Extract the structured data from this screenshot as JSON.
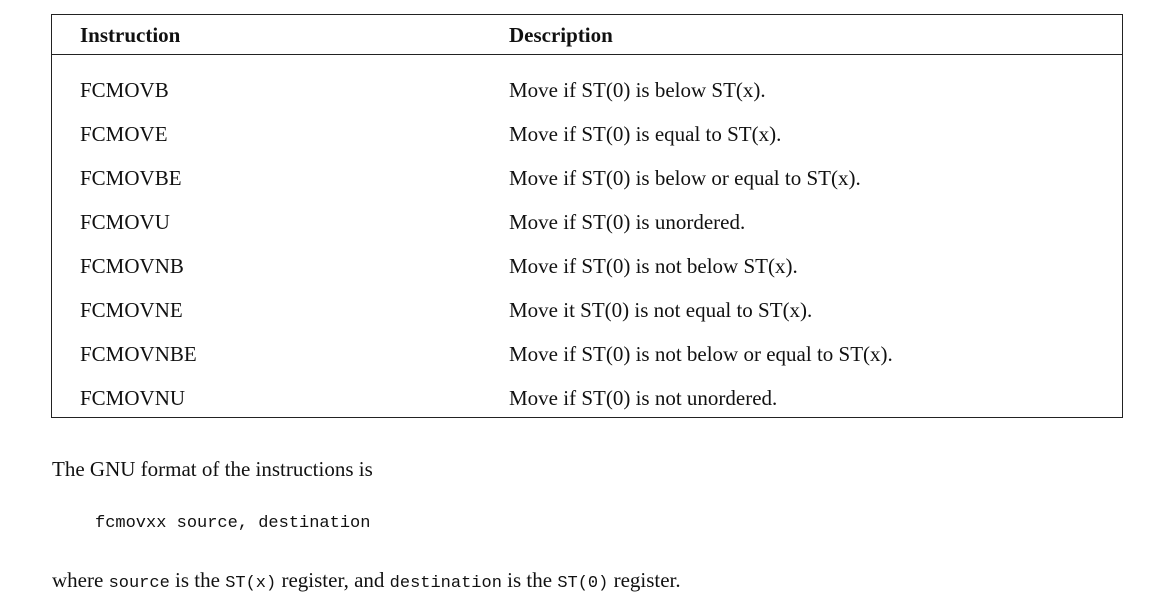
{
  "table": {
    "headers": {
      "instruction": "Instruction",
      "description": "Description"
    },
    "rows": [
      {
        "instruction": "FCMOVB",
        "description": "Move if ST(0) is below ST(x)."
      },
      {
        "instruction": "FCMOVE",
        "description": "Move if ST(0) is equal to ST(x)."
      },
      {
        "instruction": "FCMOVBE",
        "description": "Move if ST(0) is below or equal to ST(x)."
      },
      {
        "instruction": "FCMOVU",
        "description": "Move if ST(0) is unordered."
      },
      {
        "instruction": "FCMOVNB",
        "description": "Move if ST(0) is not below ST(x)."
      },
      {
        "instruction": "FCMOVNE",
        "description": "Move it ST(0) is not equal to ST(x)."
      },
      {
        "instruction": "FCMOVNBE",
        "description": "Move if ST(0) is not below or equal to ST(x)."
      },
      {
        "instruction": "FCMOVNU",
        "description": "Move if ST(0) is not unordered."
      }
    ]
  },
  "intro_text": "The GNU format of the instructions is",
  "code_line": "fcmovxx source, destination",
  "explanation": {
    "t1": "where ",
    "c1": "source",
    "t2": " is the ",
    "c2": "ST(x)",
    "t3": " register, and ",
    "c3": "destination",
    "t4": " is the ",
    "c4": "ST(0)",
    "t5": " register."
  }
}
